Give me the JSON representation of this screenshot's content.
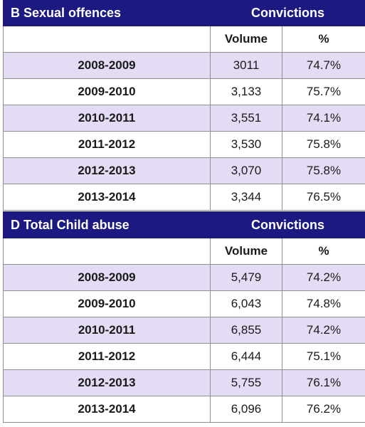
{
  "tables": [
    {
      "title": "B Sexual offences",
      "group_header": "Convictions",
      "col_volume": "Volume",
      "col_percent": "%",
      "rows": [
        {
          "year": "2008-2009",
          "volume": "3011",
          "percent": "74.7%"
        },
        {
          "year": "2009-2010",
          "volume": "3,133",
          "percent": "75.7%"
        },
        {
          "year": "2010-2011",
          "volume": "3,551",
          "percent": "74.1%"
        },
        {
          "year": "2011-2012",
          "volume": "3,530",
          "percent": "75.8%"
        },
        {
          "year": "2012-2013",
          "volume": "3,070",
          "percent": "75.8%"
        },
        {
          "year": "2013-2014",
          "volume": "3,344",
          "percent": "76.5%"
        }
      ]
    },
    {
      "title": "D Total Child abuse",
      "group_header": "Convictions",
      "col_volume": "Volume",
      "col_percent": "%",
      "rows": [
        {
          "year": "2008-2009",
          "volume": "5,479",
          "percent": "74.2%"
        },
        {
          "year": "2009-2010",
          "volume": "6,043",
          "percent": "74.8%"
        },
        {
          "year": "2010-2011",
          "volume": "6,855",
          "percent": "74.2%"
        },
        {
          "year": "2011-2012",
          "volume": "6,444",
          "percent": "75.1%"
        },
        {
          "year": "2012-2013",
          "volume": "5,755",
          "percent": "76.1%"
        },
        {
          "year": "2013-2014",
          "volume": "6,096",
          "percent": "76.2%"
        }
      ]
    }
  ],
  "colors": {
    "header_bg": "#1c1a80",
    "header_text": "#ffffff",
    "row_shade": "#e4dcf5",
    "border": "#8f8f8f"
  }
}
